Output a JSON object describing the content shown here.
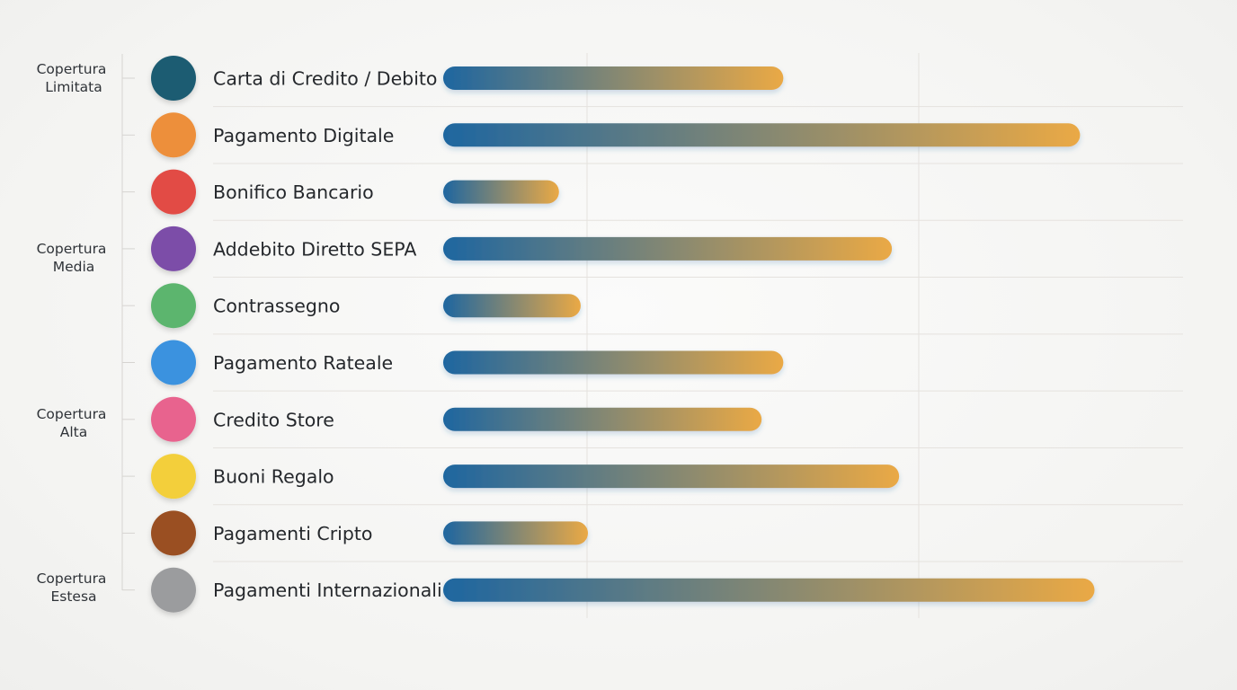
{
  "chart_data": {
    "type": "bar",
    "orientation": "horizontal",
    "title": "",
    "xlabel": "",
    "ylabel": "",
    "grid": true,
    "tiers": [
      {
        "line1": "Copertura",
        "line2": "Limitata"
      },
      {
        "line1": "Copertura",
        "line2": "Media"
      },
      {
        "line1": "Copertura",
        "line2": "Alta"
      },
      {
        "line1": "Copertura",
        "line2": "Estesa"
      }
    ],
    "categories": [
      "Carta di Credito / Debito",
      "Pagamento Digitale",
      "Bonifico Bancario",
      "Addebito Diretto SEPA",
      "Contrassegno",
      "Pagamento Rateale",
      "Credito Store",
      "Buoni Regalo",
      "Pagamenti Cripto",
      "Pagamenti Internazionali"
    ],
    "values": [
      0.47,
      0.88,
      0.16,
      0.62,
      0.19,
      0.47,
      0.44,
      0.63,
      0.2,
      0.9
    ],
    "xlim": [
      0,
      1
    ],
    "marker_colors": [
      "#1f5b72",
      "#ed8f3a",
      "#e24b45",
      "#7c4ea8",
      "#5cb56e",
      "#3a92df",
      "#e8648e",
      "#f3cf3a",
      "#9a4f22",
      "#9b9c9e"
    ],
    "bar_gradient": {
      "start": "#1e66a0",
      "end": "#eaa945"
    },
    "colors": {
      "grid": "#e5e2de",
      "axis": "#d6d4d1"
    }
  }
}
